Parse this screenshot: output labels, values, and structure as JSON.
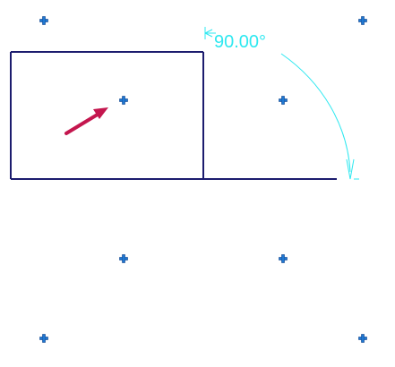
{
  "view": {
    "type": "cad-drawing-viewport"
  },
  "colors": {
    "background": "#ffffff",
    "geometry": "#1c1c6e",
    "dimension": "#2ee8f0",
    "grip": "#1f78d1",
    "grip_outline": "#0a3f8a",
    "arrow": "#c4164e"
  },
  "rectangle": {
    "name": "selected-rectangle"
  },
  "angular_dimension": {
    "text": "90.00°",
    "value_degrees": 90.0,
    "extension_symbol": "⊣"
  },
  "grips": [
    {
      "name": "grip-corner-top-left"
    },
    {
      "name": "grip-corner-top-right"
    },
    {
      "name": "grip-rect-center"
    },
    {
      "name": "grip-right-center"
    },
    {
      "name": "grip-bottom-left-mid"
    },
    {
      "name": "grip-bottom-right-mid"
    },
    {
      "name": "grip-corner-bottom-left"
    },
    {
      "name": "grip-corner-bottom-right"
    }
  ],
  "cursor": {
    "icon": "move-arrow-icon"
  }
}
